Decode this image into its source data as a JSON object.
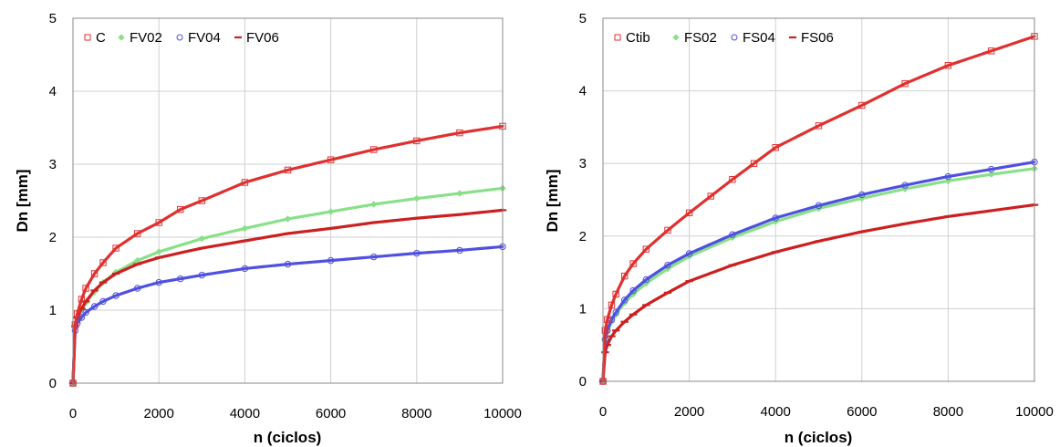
{
  "chart_data": [
    {
      "type": "scatter",
      "xlabel": "n (ciclos)",
      "ylabel": "Dn [mm]",
      "xlim": [
        0,
        10000
      ],
      "ylim": [
        0,
        5
      ],
      "xticks": [
        "0",
        "2000",
        "4000",
        "6000",
        "8000",
        "10000"
      ],
      "yticks": [
        "0",
        "1",
        "2",
        "3",
        "4",
        "5"
      ],
      "grid": true,
      "legend_position": "top-left",
      "series": [
        {
          "name": "C",
          "color": "#e03030",
          "marker": "square",
          "x": [
            0,
            50,
            100,
            200,
            300,
            500,
            700,
            1000,
            1500,
            2000,
            2500,
            3000,
            4000,
            5000,
            6000,
            7000,
            8000,
            9000,
            10000
          ],
          "y": [
            0,
            0.8,
            0.95,
            1.15,
            1.3,
            1.5,
            1.65,
            1.85,
            2.05,
            2.2,
            2.38,
            2.5,
            2.75,
            2.92,
            3.06,
            3.2,
            3.32,
            3.43,
            3.52
          ]
        },
        {
          "name": "FV02",
          "color": "#88e088",
          "marker": "diamond",
          "x": [
            0,
            50,
            100,
            200,
            300,
            500,
            700,
            1000,
            1500,
            2000,
            3000,
            4000,
            5000,
            6000,
            7000,
            8000,
            9000,
            10000
          ],
          "y": [
            0,
            0.78,
            0.88,
            1.0,
            1.1,
            1.25,
            1.38,
            1.52,
            1.68,
            1.8,
            1.98,
            2.12,
            2.25,
            2.35,
            2.45,
            2.53,
            2.6,
            2.67
          ]
        },
        {
          "name": "FV04",
          "color": "#5050e0",
          "marker": "circle",
          "x": [
            0,
            50,
            100,
            200,
            300,
            500,
            700,
            1000,
            1500,
            2000,
            2500,
            3000,
            4000,
            5000,
            6000,
            7000,
            8000,
            9000,
            10000
          ],
          "y": [
            0,
            0.72,
            0.82,
            0.9,
            0.97,
            1.05,
            1.12,
            1.2,
            1.3,
            1.38,
            1.43,
            1.48,
            1.57,
            1.63,
            1.68,
            1.73,
            1.78,
            1.82,
            1.87
          ]
        },
        {
          "name": "FV06",
          "color": "#cc2020",
          "marker": "dash",
          "x": [
            0,
            50,
            100,
            200,
            300,
            500,
            700,
            1000,
            1500,
            2000,
            3000,
            4000,
            5000,
            6000,
            7000,
            8000,
            9000,
            10000
          ],
          "y": [
            0,
            0.78,
            0.9,
            1.02,
            1.12,
            1.27,
            1.38,
            1.5,
            1.63,
            1.72,
            1.85,
            1.95,
            2.05,
            2.12,
            2.2,
            2.26,
            2.31,
            2.37
          ]
        }
      ]
    },
    {
      "type": "scatter",
      "xlabel": "n (ciclos)",
      "ylabel": "Dn [mm]",
      "xlim": [
        0,
        10000
      ],
      "ylim": [
        0,
        5
      ],
      "xticks": [
        "0",
        "2000",
        "4000",
        "6000",
        "8000",
        "10000"
      ],
      "yticks": [
        "0",
        "1",
        "2",
        "3",
        "4",
        "5"
      ],
      "grid": true,
      "legend_position": "top-left",
      "series": [
        {
          "name": "Ctib",
          "color": "#e03030",
          "marker": "square",
          "x": [
            0,
            50,
            100,
            200,
            300,
            500,
            700,
            1000,
            1500,
            2000,
            2500,
            3000,
            3500,
            4000,
            5000,
            6000,
            7000,
            8000,
            9000,
            10000
          ],
          "y": [
            0,
            0.7,
            0.85,
            1.05,
            1.2,
            1.45,
            1.62,
            1.82,
            2.08,
            2.32,
            2.55,
            2.78,
            3.0,
            3.22,
            3.52,
            3.8,
            4.1,
            4.35,
            4.55,
            4.75
          ]
        },
        {
          "name": "FS02",
          "color": "#88e088",
          "marker": "diamond",
          "x": [
            0,
            50,
            100,
            200,
            300,
            500,
            700,
            1000,
            1500,
            2000,
            3000,
            4000,
            5000,
            6000,
            7000,
            8000,
            9000,
            10000
          ],
          "y": [
            0,
            0.55,
            0.68,
            0.82,
            0.92,
            1.08,
            1.2,
            1.35,
            1.55,
            1.72,
            1.98,
            2.2,
            2.38,
            2.52,
            2.65,
            2.76,
            2.85,
            2.93
          ]
        },
        {
          "name": "FS04",
          "color": "#5050e0",
          "marker": "circle",
          "x": [
            0,
            50,
            100,
            200,
            300,
            500,
            700,
            1000,
            1500,
            2000,
            3000,
            4000,
            5000,
            6000,
            7000,
            8000,
            9000,
            10000
          ],
          "y": [
            0,
            0.58,
            0.7,
            0.85,
            0.95,
            1.12,
            1.25,
            1.4,
            1.6,
            1.76,
            2.02,
            2.25,
            2.42,
            2.57,
            2.7,
            2.82,
            2.92,
            3.02
          ]
        },
        {
          "name": "FS06",
          "color": "#cc2020",
          "marker": "dash",
          "x": [
            0,
            50,
            100,
            200,
            300,
            500,
            700,
            1000,
            1500,
            2000,
            3000,
            4000,
            5000,
            6000,
            7000,
            8000,
            9000,
            10000
          ],
          "y": [
            0,
            0.4,
            0.5,
            0.62,
            0.7,
            0.82,
            0.92,
            1.05,
            1.22,
            1.38,
            1.6,
            1.78,
            1.93,
            2.06,
            2.17,
            2.27,
            2.35,
            2.43
          ]
        }
      ]
    }
  ]
}
